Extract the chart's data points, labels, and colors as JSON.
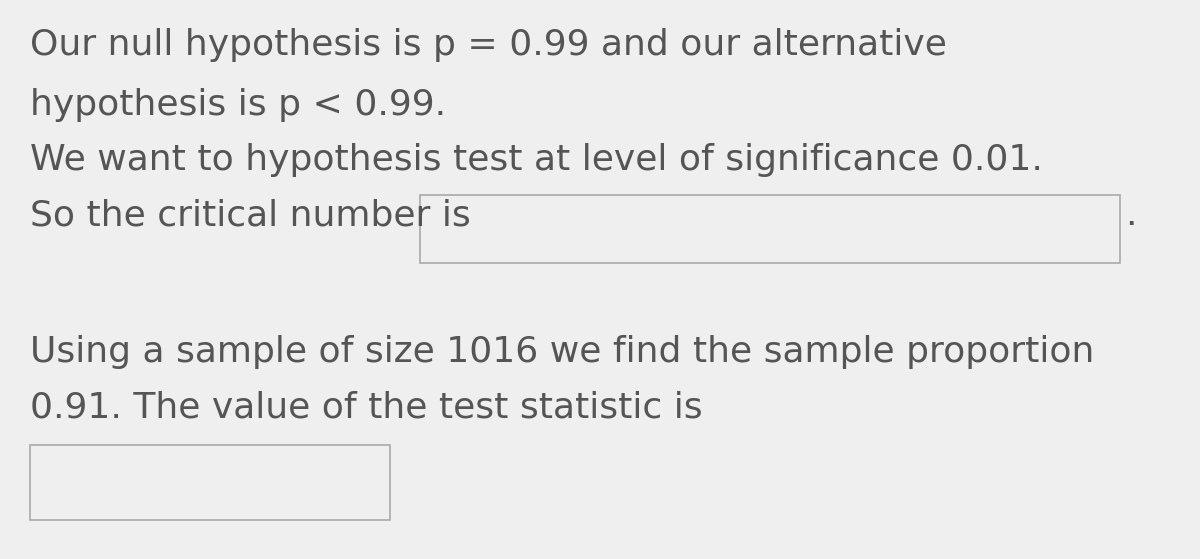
{
  "background_color": "#efefef",
  "text_color": "#555555",
  "font_size": 26,
  "line1": "Our null hypothesis is p = 0.99 and our alternative",
  "line2": "hypothesis is p < 0.99.",
  "line3": "We want to hypothesis test at level of significance 0.01.",
  "line4_before_box": "So the critical number is",
  "line4_period": ".",
  "line5": "Using a sample of size 1016 we find the sample proportion",
  "line6": "0.91. The value of the test statistic is",
  "box_edge_color": "#aaaaaa",
  "box_face_color": "#efefef"
}
